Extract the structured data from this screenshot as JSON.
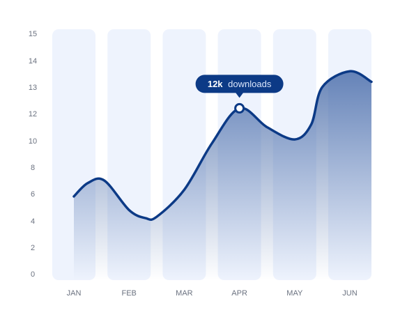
{
  "chart_data": {
    "type": "area",
    "categories": [
      "JAN",
      "FEB",
      "MAR",
      "APR",
      "MAY",
      "JUN"
    ],
    "y_ticks": [
      0,
      2,
      4,
      6,
      8,
      10,
      12,
      13,
      14,
      15
    ],
    "series": [
      {
        "x": [
          0.0,
          0.25,
          0.55,
          1.0,
          1.3,
          1.5,
          2.0,
          2.5,
          3.0,
          3.5,
          4.0,
          4.3,
          4.5,
          5.0,
          5.4
        ],
        "y": [
          5.8,
          6.8,
          7.0,
          4.8,
          4.2,
          4.3,
          6.3,
          9.8,
          12.2,
          11.0,
          10.1,
          11.2,
          13.0,
          13.6,
          13.2
        ]
      }
    ],
    "highlight": {
      "category": "APR",
      "x": 3.0,
      "y": 12.2
    },
    "tooltip": {
      "value": "12k",
      "label": "downloads"
    },
    "colors": {
      "line": "#0c3a86",
      "area_top": "#3e63a4",
      "column_band": "#eef3fd",
      "tooltip_bg": "#0c3a86",
      "axis_text": "#6b7280"
    },
    "grid": false,
    "legend": "none"
  }
}
